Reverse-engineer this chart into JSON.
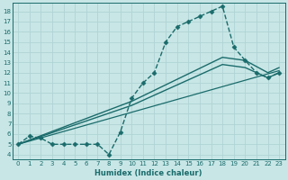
{
  "background_color": "#c8e6e6",
  "grid_color": "#b0d4d4",
  "line_color": "#1a6b6b",
  "xlabel": "Humidex (Indice chaleur)",
  "xlim": [
    -0.5,
    23.5
  ],
  "ylim": [
    3.5,
    18.8
  ],
  "xticks": [
    0,
    1,
    2,
    3,
    4,
    5,
    6,
    7,
    8,
    9,
    10,
    11,
    12,
    13,
    14,
    15,
    16,
    17,
    18,
    19,
    20,
    21,
    22,
    23
  ],
  "yticks": [
    4,
    5,
    6,
    7,
    8,
    9,
    10,
    11,
    12,
    13,
    14,
    15,
    16,
    17,
    18
  ],
  "series": [
    {
      "x": [
        0,
        1,
        2,
        3,
        4,
        5,
        6,
        7,
        8,
        9,
        10,
        11,
        12,
        13,
        14,
        15,
        16,
        17,
        18,
        19,
        20,
        21,
        22,
        23
      ],
      "y": [
        5.0,
        5.8,
        5.6,
        5.0,
        5.0,
        5.0,
        5.0,
        5.0,
        4.0,
        6.2,
        9.5,
        11.0,
        12.0,
        15.0,
        16.5,
        17.0,
        17.5,
        18.0,
        18.5,
        14.5,
        13.2,
        12.0,
        11.5,
        12.0
      ],
      "marker": "D",
      "markersize": 2.5,
      "linewidth": 1.0,
      "linestyle": "--"
    },
    {
      "x": [
        0,
        10,
        18,
        20,
        22,
        23
      ],
      "y": [
        5.0,
        9.2,
        13.5,
        13.2,
        12.0,
        12.5
      ],
      "marker": null,
      "linewidth": 1.0,
      "linestyle": "-"
    },
    {
      "x": [
        0,
        10,
        18,
        20,
        22,
        23
      ],
      "y": [
        5.0,
        8.8,
        12.8,
        12.5,
        11.5,
        12.0
      ],
      "marker": null,
      "linewidth": 1.0,
      "linestyle": "-"
    },
    {
      "x": [
        0,
        23
      ],
      "y": [
        5.0,
        12.2
      ],
      "marker": null,
      "linewidth": 0.9,
      "linestyle": "-"
    }
  ]
}
